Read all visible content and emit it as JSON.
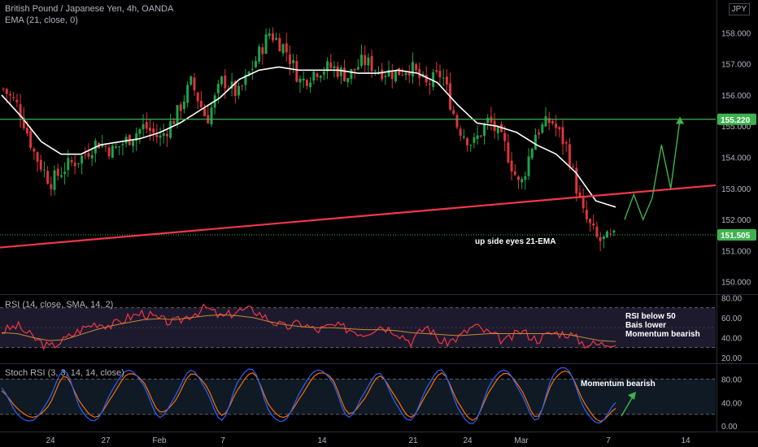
{
  "header": {
    "title": "British Pound / Japanese Yen, 4h, OANDA",
    "ema_label": "EMA (21, close, 0)",
    "currency": "JPY"
  },
  "panes": {
    "rsi_label": "RSI (14, close, SMA, 14, 2)",
    "stoch_label": "Stoch RSI (3, 3, 14, 14, close)"
  },
  "annotations": {
    "price_note": "up side eyes 21-EMA",
    "rsi_note": [
      "RSI below 50",
      "Bais lower",
      "Momentum bearish"
    ],
    "stoch_note": "Momentum bearish"
  },
  "colors": {
    "up": "#26a69a",
    "bull_candle": "#1aa64a",
    "bear_candle": "#e0343c",
    "ema": "#ffffff",
    "support_line": "#3fb24e",
    "trend_line": "#f2374a",
    "rsi": "#f23645",
    "rsi_ma": "#c58a33",
    "stoch_k": "#2962ff",
    "stoch_d": "#ff6d00",
    "projection": "#3fb24e"
  },
  "chart_data": [
    {
      "type": "candlestick",
      "title": "British Pound / Japanese Yen, 4h, OANDA",
      "x_ticks": [
        "24",
        "27",
        "Feb",
        "7",
        "14",
        "21",
        "24",
        "Mar",
        "7",
        "14"
      ],
      "y_ticks": [
        150.0,
        151.0,
        152.0,
        153.0,
        154.0,
        155.0,
        156.0,
        157.0,
        158.0
      ],
      "ylim": [
        149.6,
        159.0
      ],
      "price_path": [
        156.2,
        155.6,
        154.1,
        153.2,
        153.7,
        154.0,
        154.5,
        154.2,
        154.6,
        155.0,
        154.6,
        155.3,
        156.4,
        155.2,
        156.5,
        156.0,
        157.0,
        158.0,
        157.5,
        156.4,
        156.8,
        156.9,
        156.6,
        157.1,
        156.8,
        156.7,
        156.9,
        156.3,
        156.7,
        155.0,
        154.4,
        155.2,
        154.4,
        153.0,
        154.8,
        155.2,
        154.3,
        152.2,
        151.3,
        151.4
      ],
      "ema_path": [
        156.0,
        155.3,
        154.5,
        154.1,
        154.1,
        154.4,
        154.5,
        154.6,
        154.8,
        155.1,
        155.5,
        155.9,
        156.5,
        156.8,
        156.9,
        156.8,
        156.8,
        156.8,
        156.7,
        156.7,
        156.8,
        156.7,
        156.4,
        155.7,
        155.1,
        155.0,
        154.8,
        154.4,
        154.1,
        153.5,
        152.6,
        152.4
      ],
      "horizontal_levels": [
        155.22,
        151.505
      ],
      "level_labels": [
        "155.220",
        "151.505"
      ],
      "trendline": [
        151.1,
        153.1
      ],
      "projection_path": [
        152.0,
        152.8,
        152.0,
        152.7,
        154.4,
        153.0,
        155.2
      ],
      "ema_label": "EMA (21, close, 0)",
      "annotation": "up side eyes 21-EMA"
    },
    {
      "type": "line",
      "title": "RSI (14, close, SMA, 14, 2)",
      "y_ticks": [
        20.0,
        40.0,
        60.0,
        80.0
      ],
      "ylim": [
        15,
        82
      ],
      "bands": [
        30,
        70
      ],
      "rsi": [
        46,
        52,
        40,
        30,
        38,
        48,
        55,
        52,
        60,
        65,
        58,
        55,
        63,
        70,
        60,
        67,
        68,
        58,
        50,
        55,
        47,
        52,
        49,
        44,
        52,
        47,
        36,
        52,
        34,
        40,
        52,
        44,
        36,
        47,
        38,
        45,
        44,
        34,
        33,
        36
      ],
      "rsi_ma": [
        45,
        44,
        40,
        37,
        38,
        43,
        48,
        52,
        55,
        58,
        59,
        58,
        60,
        62,
        63,
        62,
        60,
        56,
        53,
        51,
        50,
        50,
        49,
        48,
        48,
        47,
        45,
        44,
        43,
        42,
        43,
        44,
        44,
        44,
        44,
        44,
        43,
        40,
        37,
        36
      ],
      "annotation": [
        "RSI below 50",
        "Bais lower",
        "Momentum bearish"
      ]
    },
    {
      "type": "line",
      "title": "Stoch RSI (3, 3, 14, 14, close)",
      "y_ticks": [
        0.0,
        40.0,
        80.0
      ],
      "ylim": [
        -8,
        104
      ],
      "bands": [
        20,
        80
      ],
      "k": [
        65,
        20,
        10,
        45,
        95,
        30,
        10,
        60,
        95,
        70,
        15,
        50,
        95,
        60,
        10,
        75,
        95,
        25,
        10,
        60,
        95,
        75,
        15,
        55,
        90,
        40,
        10,
        65,
        95,
        30,
        5,
        70,
        95,
        55,
        10,
        85,
        95,
        30,
        5,
        40
      ],
      "d": [
        60,
        30,
        15,
        35,
        85,
        40,
        15,
        50,
        88,
        75,
        25,
        42,
        88,
        68,
        18,
        62,
        90,
        35,
        15,
        50,
        88,
        80,
        22,
        45,
        85,
        50,
        15,
        55,
        90,
        40,
        10,
        60,
        90,
        62,
        15,
        75,
        92,
        40,
        8,
        30
      ],
      "annotation": "Momentum bearish"
    }
  ]
}
